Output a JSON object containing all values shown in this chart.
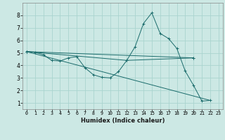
{
  "title": "",
  "xlabel": "Humidex (Indice chaleur)",
  "ylabel": "",
  "background_color": "#cce8e4",
  "line_color": "#1a6b6b",
  "grid_color": "#aad4cf",
  "xlim": [
    -0.5,
    23.5
  ],
  "ylim": [
    0.5,
    9.0
  ],
  "xticks": [
    0,
    1,
    2,
    3,
    4,
    5,
    6,
    7,
    8,
    9,
    10,
    11,
    12,
    13,
    14,
    15,
    16,
    17,
    18,
    19,
    20,
    21,
    22,
    23
  ],
  "yticks": [
    1,
    2,
    3,
    4,
    5,
    6,
    7,
    8
  ],
  "series": [
    {
      "x": [
        0,
        1,
        2,
        3,
        4,
        5,
        6,
        7,
        8,
        9,
        10,
        11,
        12,
        13,
        14,
        15,
        16,
        17,
        18,
        19,
        20,
        21,
        22
      ],
      "y": [
        5.1,
        5.05,
        4.85,
        4.4,
        4.35,
        4.6,
        4.7,
        3.8,
        3.25,
        3.05,
        3.0,
        3.5,
        4.4,
        5.5,
        7.35,
        8.2,
        6.55,
        6.15,
        5.35,
        3.55,
        2.4,
        1.15,
        1.2
      ],
      "marker": true
    },
    {
      "x": [
        0,
        20
      ],
      "y": [
        5.1,
        4.6
      ],
      "marker": true
    },
    {
      "x": [
        0,
        22
      ],
      "y": [
        5.1,
        1.2
      ],
      "marker": false
    },
    {
      "x": [
        0,
        12,
        20
      ],
      "y": [
        5.1,
        4.4,
        4.6
      ],
      "marker": true
    }
  ]
}
